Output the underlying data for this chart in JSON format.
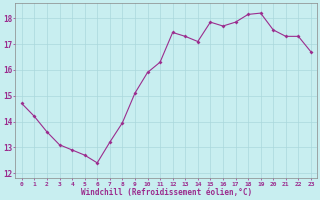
{
  "x": [
    0,
    1,
    2,
    3,
    4,
    5,
    6,
    7,
    8,
    9,
    10,
    11,
    12,
    13,
    14,
    15,
    16,
    17,
    18,
    19,
    20,
    21,
    22,
    23
  ],
  "y": [
    14.7,
    14.2,
    13.6,
    13.1,
    12.9,
    12.7,
    12.4,
    13.2,
    13.95,
    15.1,
    15.9,
    16.3,
    17.45,
    17.3,
    17.1,
    17.85,
    17.7,
    17.85,
    18.15,
    18.2,
    17.55,
    17.3,
    17.3,
    16.7
  ],
  "line_color": "#9b2d8e",
  "marker": "D",
  "marker_size": 2,
  "bg_color": "#c8eef0",
  "grid_color": "#aad8dc",
  "xlabel": "Windchill (Refroidissement éolien,°C)",
  "xlabel_color": "#9b2d8e",
  "tick_color": "#9b2d8e",
  "xlim": [
    -0.5,
    23.5
  ],
  "ylim": [
    11.8,
    18.6
  ],
  "yticks": [
    12,
    13,
    14,
    15,
    16,
    17,
    18
  ],
  "xtick_labels": [
    "0",
    "1",
    "2",
    "3",
    "4",
    "5",
    "6",
    "7",
    "8",
    "9",
    "10",
    "11",
    "12",
    "13",
    "14",
    "15",
    "16",
    "17",
    "18",
    "19",
    "20",
    "21",
    "22",
    "23"
  ],
  "figsize": [
    3.2,
    2.0
  ],
  "dpi": 100
}
